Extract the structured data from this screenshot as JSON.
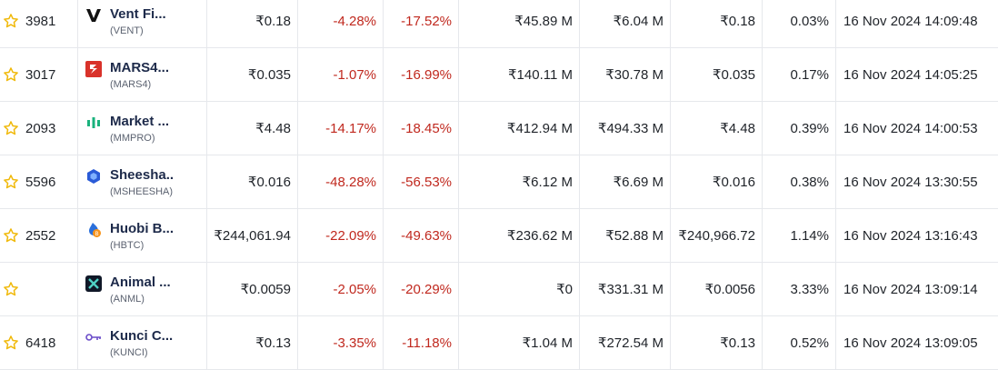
{
  "colors": {
    "negative": "#c0281e",
    "star": "#f0b90b",
    "border": "#e6e8ec",
    "coin_name": "#1d2a4a"
  },
  "rows": [
    {
      "rank": "3981",
      "name": "Vent Fi...",
      "symbol": "(VENT)",
      "logo": "vent-logo-icon",
      "price": "₹0.18",
      "change_24h": "-4.28%",
      "change_7d": "-17.52%",
      "market_cap": "₹45.89 M",
      "volume": "₹6.04 M",
      "pair_price": "₹0.18",
      "share": "0.03%",
      "updated": "16 Nov 2024 14:09:48"
    },
    {
      "rank": "3017",
      "name": "MARS4...",
      "symbol": "(MARS4)",
      "logo": "mars4-logo-icon",
      "price": "₹0.035",
      "change_24h": "-1.07%",
      "change_7d": "-16.99%",
      "market_cap": "₹140.11 M",
      "volume": "₹30.78 M",
      "pair_price": "₹0.035",
      "share": "0.17%",
      "updated": "16 Nov 2024 14:05:25"
    },
    {
      "rank": "2093",
      "name": "Market ...",
      "symbol": "(MMPRO)",
      "logo": "mmpro-logo-icon",
      "price": "₹4.48",
      "change_24h": "-14.17%",
      "change_7d": "-18.45%",
      "market_cap": "₹412.94 M",
      "volume": "₹494.33 M",
      "pair_price": "₹4.48",
      "share": "0.39%",
      "updated": "16 Nov 2024 14:00:53"
    },
    {
      "rank": "5596",
      "name": "Sheesha...",
      "symbol": "(MSHEESHA)",
      "logo": "sheesha-logo-icon",
      "price": "₹0.016",
      "change_24h": "-48.28%",
      "change_7d": "-56.53%",
      "market_cap": "₹6.12 M",
      "volume": "₹6.69 M",
      "pair_price": "₹0.016",
      "share": "0.38%",
      "updated": "16 Nov 2024 13:30:55"
    },
    {
      "rank": "2552",
      "name": "Huobi B...",
      "symbol": "(HBTC)",
      "logo": "huobi-btc-logo-icon",
      "price": "₹244,061.94",
      "change_24h": "-22.09%",
      "change_7d": "-49.63%",
      "market_cap": "₹236.62 M",
      "volume": "₹52.88 M",
      "pair_price": "₹240,966.72",
      "share": "1.14%",
      "updated": "16 Nov 2024 13:16:43"
    },
    {
      "rank": "",
      "name": "Animal ...",
      "symbol": "(ANML)",
      "logo": "animal-logo-icon",
      "price": "₹0.0059",
      "change_24h": "-2.05%",
      "change_7d": "-20.29%",
      "market_cap": "₹0",
      "volume": "₹331.31 M",
      "pair_price": "₹0.0056",
      "share": "3.33%",
      "updated": "16 Nov 2024 13:09:14"
    },
    {
      "rank": "6418",
      "name": "Kunci C...",
      "symbol": "(KUNCI)",
      "logo": "kunci-logo-icon",
      "price": "₹0.13",
      "change_24h": "-3.35%",
      "change_7d": "-11.18%",
      "market_cap": "₹1.04 M",
      "volume": "₹272.54 M",
      "pair_price": "₹0.13",
      "share": "0.52%",
      "updated": "16 Nov 2024 13:09:05"
    }
  ]
}
